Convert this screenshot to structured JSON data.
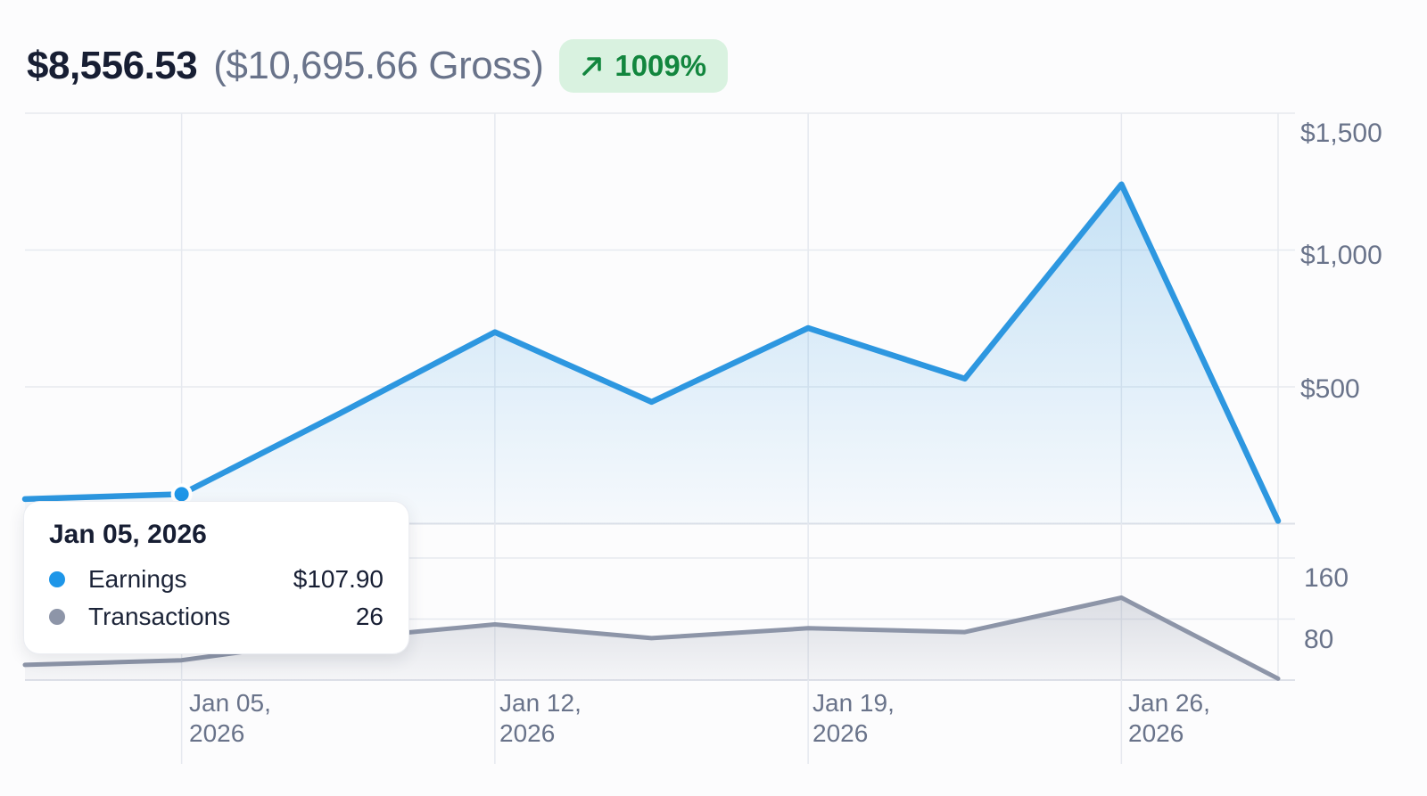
{
  "header": {
    "net_amount": "$8,556.53",
    "gross_amount": "($10,695.66 Gross)",
    "change_badge": {
      "icon": "arrow-up-right",
      "value": "1009%",
      "text_color": "#12863e",
      "bg_color": "#d9f2e0"
    }
  },
  "tooltip": {
    "date": "Jan 05, 2026",
    "rows": [
      {
        "label": "Earnings",
        "value": "$107.90",
        "dot_color": "#1e96e8"
      },
      {
        "label": "Transactions",
        "value": "26",
        "dot_color": "#8d95a8"
      }
    ]
  },
  "chart_data": [
    {
      "type": "area",
      "name": "Earnings",
      "line_color": "#2d97e0",
      "x_dates": [
        "Jan 01, 2026",
        "Jan 05, 2026",
        "Jan 08, 2026",
        "Jan 12, 2026",
        "Jan 15, 2026",
        "Jan 19, 2026",
        "Jan 22, 2026",
        "Jan 26, 2026",
        "Jan 29, 2026"
      ],
      "values": [
        90,
        107.9,
        400,
        700,
        445,
        715,
        530,
        1240,
        10
      ],
      "ylim": [
        0,
        1500
      ],
      "grid": true,
      "legend_position": "none",
      "highlight_point": {
        "index": 1,
        "date": "Jan 05, 2026",
        "value": 107.9
      },
      "y_ticks": [
        {
          "label": "$1,500",
          "value": 1500
        },
        {
          "label": "$1,000",
          "value": 1000
        },
        {
          "label": "$500",
          "value": 500
        }
      ],
      "x_ticks": [
        {
          "line1": "Jan 05,",
          "line2": "2026",
          "date_index": 1
        },
        {
          "line1": "Jan 12,",
          "line2": "2026",
          "date_index": 3
        },
        {
          "line1": "Jan 19,",
          "line2": "2026",
          "date_index": 5
        },
        {
          "line1": "Jan 26,",
          "line2": "2026",
          "date_index": 7
        }
      ]
    },
    {
      "type": "area",
      "name": "Transactions",
      "line_color": "#8d95a8",
      "x_dates": [
        "Jan 01, 2026",
        "Jan 05, 2026",
        "Jan 08, 2026",
        "Jan 12, 2026",
        "Jan 15, 2026",
        "Jan 19, 2026",
        "Jan 22, 2026",
        "Jan 26, 2026",
        "Jan 29, 2026"
      ],
      "values": [
        20,
        26,
        54,
        73,
        55,
        68,
        63,
        108,
        2
      ],
      "ylim": [
        0,
        160
      ],
      "grid": true,
      "legend_position": "none",
      "y_ticks": [
        {
          "label": "160",
          "value": 160
        },
        {
          "label": "80",
          "value": 80
        }
      ]
    }
  ],
  "colors": {
    "grid_line": "#e6e9ef",
    "axis_line": "#dde0e8",
    "axis_text": "#69738a",
    "text_dark": "#171e33"
  }
}
